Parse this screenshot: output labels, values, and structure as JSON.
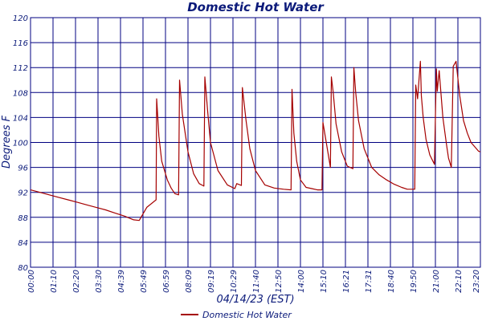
{
  "chart_data": {
    "type": "line",
    "title": "Domestic Hot Water",
    "xlabel": "04/14/23 (EST)",
    "ylabel": "Degrees F",
    "ylim": [
      80,
      120
    ],
    "yticks": [
      "80",
      "84",
      "88",
      "92",
      "96",
      "100",
      "104",
      "108",
      "112",
      "116",
      "120"
    ],
    "xticks": [
      "00:00",
      "01:10",
      "02:20",
      "03:30",
      "04:39",
      "05:49",
      "06:59",
      "08:09",
      "09:19",
      "10:29",
      "11:40",
      "12:50",
      "14:00",
      "15:10",
      "16:21",
      "17:31",
      "18:40",
      "19:50",
      "21:00",
      "22:10",
      "23:20"
    ],
    "x_unit": "hours",
    "xlim": [
      0,
      24
    ],
    "grid": true,
    "legend_position": "bottom-center",
    "series": [
      {
        "name": "Domestic Hot Water",
        "color": "#a50000",
        "x": [
          0,
          0.5,
          1.0,
          1.5,
          2.0,
          2.5,
          3.0,
          3.5,
          4.0,
          4.5,
          5.0,
          5.5,
          5.8,
          6.2,
          6.7,
          6.73,
          6.85,
          7.0,
          7.3,
          7.5,
          7.7,
          7.9,
          7.95,
          8.1,
          8.4,
          8.7,
          9.0,
          9.25,
          9.3,
          9.45,
          9.6,
          10.0,
          10.5,
          10.9,
          11.0,
          11.25,
          11.3,
          11.5,
          11.7,
          12.0,
          12.5,
          13.0,
          13.5,
          13.9,
          13.95,
          14.05,
          14.2,
          14.4,
          14.7,
          15.0,
          15.3,
          15.55,
          15.6,
          15.75,
          16.0,
          16.05,
          16.15,
          16.3,
          16.6,
          16.9,
          17.2,
          17.25,
          17.35,
          17.5,
          17.8,
          18.2,
          18.6,
          19.0,
          19.4,
          19.8,
          20.1,
          20.5,
          20.55,
          20.65,
          20.8,
          20.85,
          20.95,
          21.1,
          21.3,
          21.55,
          21.65,
          21.7,
          21.8,
          22.0,
          22.2,
          22.3,
          22.45,
          22.55,
          22.7,
          22.9,
          23.1,
          23.3,
          23.5,
          23.9,
          24.0
        ],
        "values": [
          92.4,
          92.0,
          91.6,
          91.2,
          90.8,
          90.4,
          90.0,
          89.6,
          89.2,
          88.7,
          88.2,
          87.6,
          87.5,
          89.6,
          90.8,
          107.0,
          101.0,
          97.0,
          94.0,
          92.7,
          91.8,
          91.6,
          110.0,
          104.5,
          98.5,
          95.0,
          93.4,
          93.0,
          110.5,
          105.0,
          100.0,
          95.5,
          93.2,
          92.6,
          93.4,
          93.1,
          108.8,
          103.5,
          99.0,
          95.5,
          93.2,
          92.7,
          92.5,
          92.4,
          108.5,
          101.5,
          97.0,
          94.0,
          92.8,
          92.6,
          92.4,
          92.4,
          103.2,
          100.5,
          96.0,
          110.5,
          108.0,
          103.0,
          98.5,
          96.2,
          95.8,
          112.0,
          108.0,
          103.5,
          99.0,
          96.0,
          94.8,
          94.0,
          93.3,
          92.8,
          92.5,
          92.5,
          109.2,
          107.0,
          113.0,
          107.5,
          104.0,
          100.5,
          98.0,
          96.5,
          111.8,
          108.2,
          111.5,
          104.0,
          99.5,
          97.5,
          96.0,
          112.2,
          113.0,
          107.5,
          103.5,
          101.5,
          100.0,
          98.6,
          98.5
        ]
      }
    ]
  }
}
